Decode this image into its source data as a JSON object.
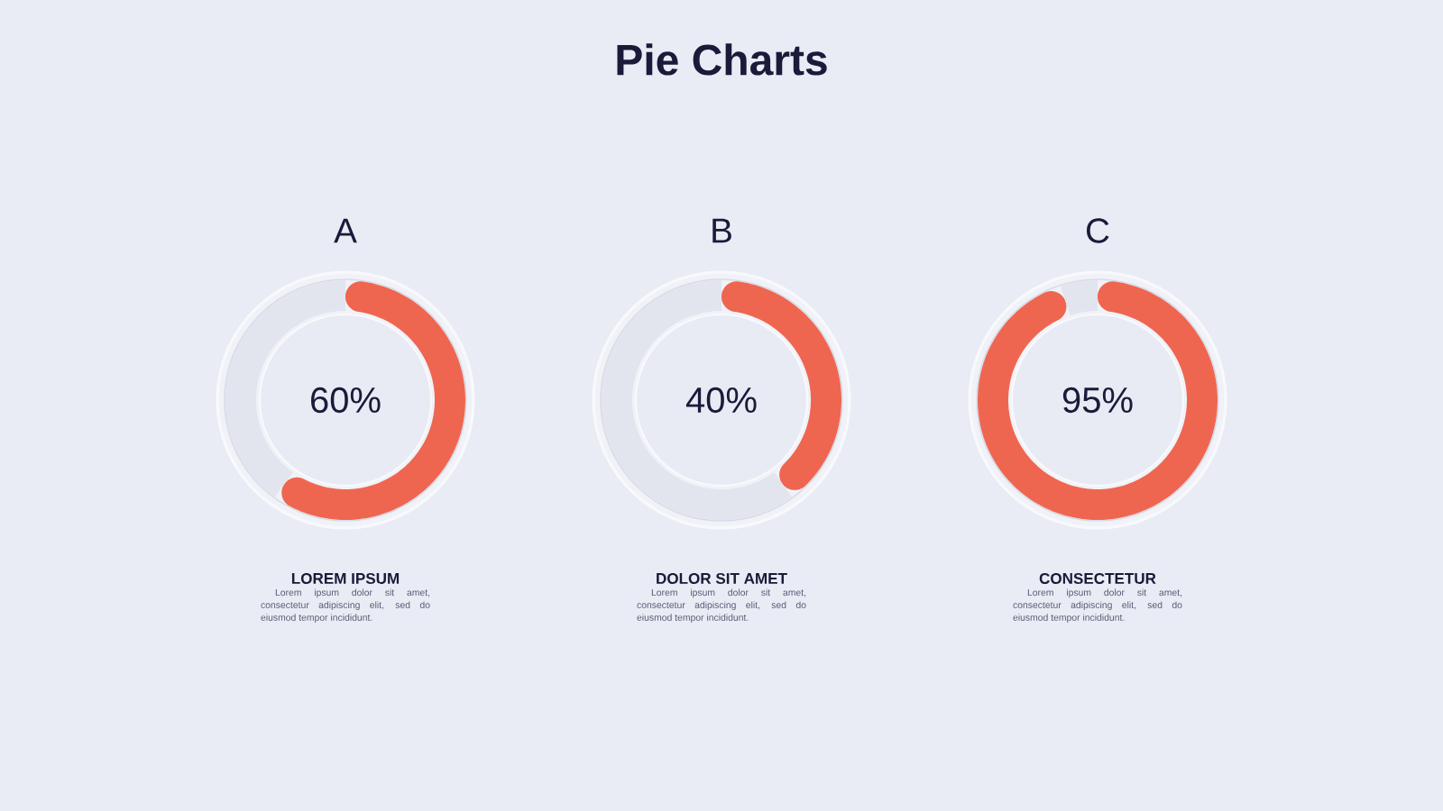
{
  "chart_data": [
    {
      "type": "donut",
      "title": "A",
      "categories": [
        null,
        null
      ],
      "values": [
        60,
        40
      ],
      "colors": [
        "#ef6650",
        "#e2e5ee"
      ],
      "annotations": [
        "Pie Charts",
        "60%",
        "LOREM IPSUM",
        "Lorem ipsum dolor sit amet, consectetur adipiscing elit, sed do eiusmod tempor incididunt."
      ]
    },
    {
      "type": "donut",
      "title": "B",
      "categories": [
        null,
        null
      ],
      "values": [
        40,
        60
      ],
      "colors": [
        "#ef6650",
        "#e2e5ee"
      ],
      "annotations": [
        "40%",
        "DOLOR SIT AMET",
        "Lorem ipsum dolor sit amet, consectetur adipiscing elit, sed do eiusmod tempor incididunt."
      ]
    },
    {
      "type": "donut",
      "title": "C",
      "categories": [
        null,
        null
      ],
      "values": [
        95,
        5
      ],
      "colors": [
        "#ef6650",
        "#e2e5ee"
      ],
      "annotations": [
        "95%",
        "CONSECTETUR",
        "Lorem ipsum dolor sit amet, consectetur adipiscing elit, sed do eiusmod tempor incididunt."
      ]
    }
  ]
}
